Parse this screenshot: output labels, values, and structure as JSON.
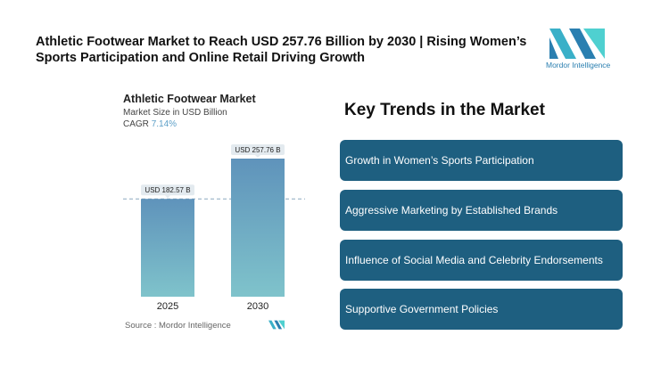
{
  "title": "Athletic Footwear Market to Reach USD 257.76 Billion by 2030 | Rising Women’s Sports Participation and Online Retail Driving Growth",
  "logo": {
    "text": "Mordor Intelligence"
  },
  "chart_data": {
    "type": "bar",
    "title": "Athletic Footwear Market",
    "subtitle": "Market Size in USD Billion",
    "cagr_label": "CAGR",
    "cagr_value": "7.14%",
    "categories": [
      "2025",
      "2030"
    ],
    "values": [
      182.57,
      257.76
    ],
    "data_labels": [
      "USD 182.57 B",
      "USD 257.76 B"
    ],
    "source": "Source :  Mordor Intelligence",
    "colors": {
      "top": "#5f93bb",
      "bottom": "#7fc3cb"
    }
  },
  "trends": {
    "heading": "Key Trends in the Market",
    "items": [
      "Growth in Women’s Sports Participation",
      "Aggressive Marketing by Established Brands",
      "Influence of Social Media and Celebrity Endorsements",
      "Supportive Government Policies"
    ],
    "color": "#1e5f80"
  }
}
